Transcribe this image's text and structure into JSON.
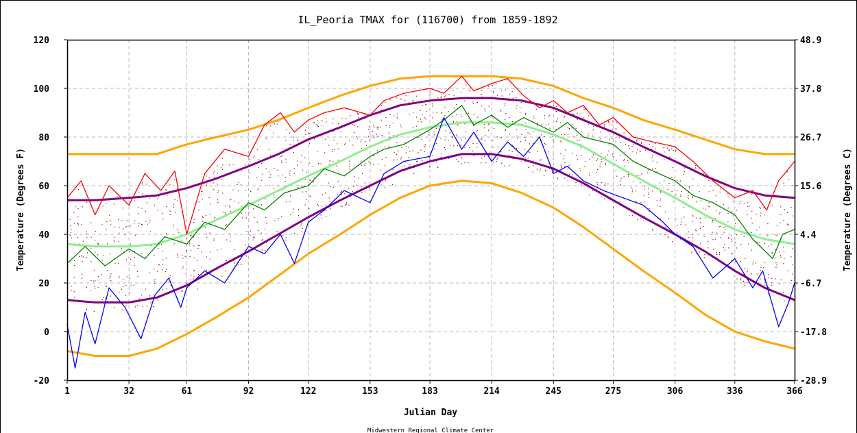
{
  "chart_data": {
    "type": "line",
    "title": "IL_Peoria TMAX for (116700) from 1859-1892",
    "xlabel": "Julian Day",
    "ylabel_left": "Temperature (Degrees F)",
    "ylabel_right": "Temperature (Degrees C)",
    "credit": "Midwestern Regional Climate Center",
    "xlim": [
      1,
      366
    ],
    "ylim": [
      -20,
      120
    ],
    "grid": true,
    "x_ticks": [
      1,
      32,
      61,
      92,
      122,
      153,
      183,
      214,
      245,
      275,
      306,
      336,
      366
    ],
    "y_ticks_left": [
      -20,
      0,
      20,
      40,
      60,
      80,
      100,
      120
    ],
    "y_ticks_right": [
      "-28.9",
      "-17.8",
      "-6.7",
      "4.4",
      "15.6",
      "26.7",
      "37.8",
      "48.9"
    ],
    "colors": {
      "record_high": "#ff0000",
      "record_low": "#0000ff",
      "daily_mean": "#008000",
      "smoothed_mean": "#90ee90",
      "normal_band": "#800080",
      "extreme_envelope": "#ffa500",
      "scatter": "#990000"
    },
    "series": [
      {
        "x": [
          1,
          15,
          32,
          46,
          61,
          76,
          92,
          107,
          122,
          138,
          153,
          168,
          183,
          199,
          214,
          229,
          245,
          260,
          275,
          290,
          306,
          321,
          336,
          351,
          366
        ],
        "values": [
          73,
          73,
          73,
          73,
          77,
          80,
          83,
          87,
          92,
          97,
          101,
          104,
          105,
          105,
          105,
          104,
          101,
          96,
          92,
          87,
          83,
          79,
          75,
          73,
          73
        ]
      },
      {
        "x": [
          1,
          15,
          32,
          46,
          61,
          76,
          92,
          107,
          122,
          138,
          153,
          168,
          183,
          199,
          214,
          229,
          245,
          260,
          275,
          290,
          306,
          321,
          336,
          351,
          366
        ],
        "values": [
          -8,
          -10,
          -10,
          -7,
          -1,
          6,
          14,
          23,
          32,
          40,
          48,
          55,
          60,
          62,
          61,
          57,
          51,
          43,
          34,
          25,
          16,
          7,
          0,
          -4,
          -7
        ]
      },
      {
        "x": [
          1,
          15,
          32,
          46,
          61,
          76,
          92,
          107,
          122,
          138,
          153,
          168,
          183,
          199,
          214,
          229,
          245,
          260,
          275,
          290,
          306,
          321,
          336,
          351,
          366
        ],
        "values": [
          54,
          54,
          55,
          56,
          59,
          63,
          68,
          73,
          79,
          84,
          89,
          93,
          95,
          96,
          96,
          95,
          92,
          87,
          82,
          76,
          70,
          64,
          59,
          56,
          55
        ]
      },
      {
        "x": [
          1,
          15,
          32,
          46,
          61,
          76,
          92,
          107,
          122,
          138,
          153,
          168,
          183,
          199,
          214,
          229,
          245,
          260,
          275,
          290,
          306,
          321,
          336,
          351,
          366
        ],
        "values": [
          13,
          12,
          12,
          14,
          19,
          26,
          33,
          40,
          47,
          54,
          60,
          66,
          70,
          73,
          73,
          71,
          67,
          61,
          54,
          47,
          40,
          33,
          25,
          18,
          13
        ]
      },
      {
        "x": [
          1,
          15,
          32,
          46,
          61,
          76,
          92,
          107,
          122,
          138,
          153,
          168,
          183,
          199,
          214,
          229,
          245,
          260,
          275,
          290,
          306,
          321,
          336,
          351,
          366
        ],
        "values": [
          36,
          35,
          35,
          36,
          40,
          46,
          52,
          58,
          64,
          70,
          76,
          81,
          84,
          86,
          86,
          85,
          81,
          76,
          69,
          62,
          55,
          48,
          42,
          38,
          36
        ]
      },
      {
        "x": [
          1,
          10,
          20,
          32,
          40,
          50,
          61,
          70,
          80,
          92,
          100,
          110,
          122,
          130,
          140,
          153,
          160,
          170,
          183,
          190,
          199,
          205,
          214,
          222,
          230,
          245,
          252,
          260,
          275,
          285,
          295,
          306,
          315,
          325,
          336,
          345,
          355,
          360,
          366
        ],
        "values": [
          28,
          35,
          27,
          34,
          30,
          39,
          36,
          45,
          42,
          53,
          50,
          57,
          60,
          67,
          64,
          72,
          75,
          77,
          83,
          87,
          93,
          85,
          89,
          84,
          88,
          82,
          86,
          80,
          77,
          70,
          66,
          62,
          56,
          53,
          48,
          38,
          30,
          40,
          42
        ]
      },
      {
        "x": [
          1,
          8,
          15,
          22,
          32,
          40,
          48,
          55,
          61,
          70,
          80,
          92,
          100,
          108,
          115,
          122,
          130,
          140,
          153,
          160,
          170,
          183,
          190,
          199,
          205,
          214,
          222,
          230,
          238,
          245,
          252,
          260,
          268,
          275,
          285,
          295,
          306,
          315,
          325,
          336,
          345,
          352,
          358,
          366
        ],
        "values": [
          55,
          62,
          48,
          60,
          52,
          65,
          58,
          66,
          40,
          65,
          75,
          72,
          85,
          90,
          82,
          87,
          90,
          92,
          89,
          95,
          98,
          100,
          98,
          105,
          99,
          102,
          104,
          97,
          92,
          95,
          90,
          93,
          85,
          88,
          80,
          78,
          76,
          70,
          62,
          55,
          58,
          50,
          62,
          70
        ]
      },
      {
        "x": [
          1,
          5,
          10,
          15,
          22,
          30,
          38,
          45,
          52,
          58,
          61,
          70,
          80,
          92,
          100,
          108,
          115,
          122,
          130,
          140,
          153,
          160,
          170,
          183,
          190,
          199,
          205,
          214,
          222,
          230,
          238,
          245,
          252,
          260,
          270,
          280,
          290,
          300,
          306,
          315,
          325,
          336,
          345,
          350,
          358,
          363,
          366
        ],
        "values": [
          3,
          -15,
          8,
          -5,
          18,
          10,
          -3,
          15,
          22,
          10,
          18,
          25,
          20,
          35,
          32,
          40,
          28,
          45,
          50,
          58,
          53,
          65,
          70,
          72,
          88,
          75,
          82,
          70,
          78,
          72,
          80,
          65,
          68,
          62,
          58,
          55,
          52,
          45,
          40,
          35,
          22,
          30,
          18,
          25,
          2,
          12,
          20
        ]
      }
    ]
  }
}
